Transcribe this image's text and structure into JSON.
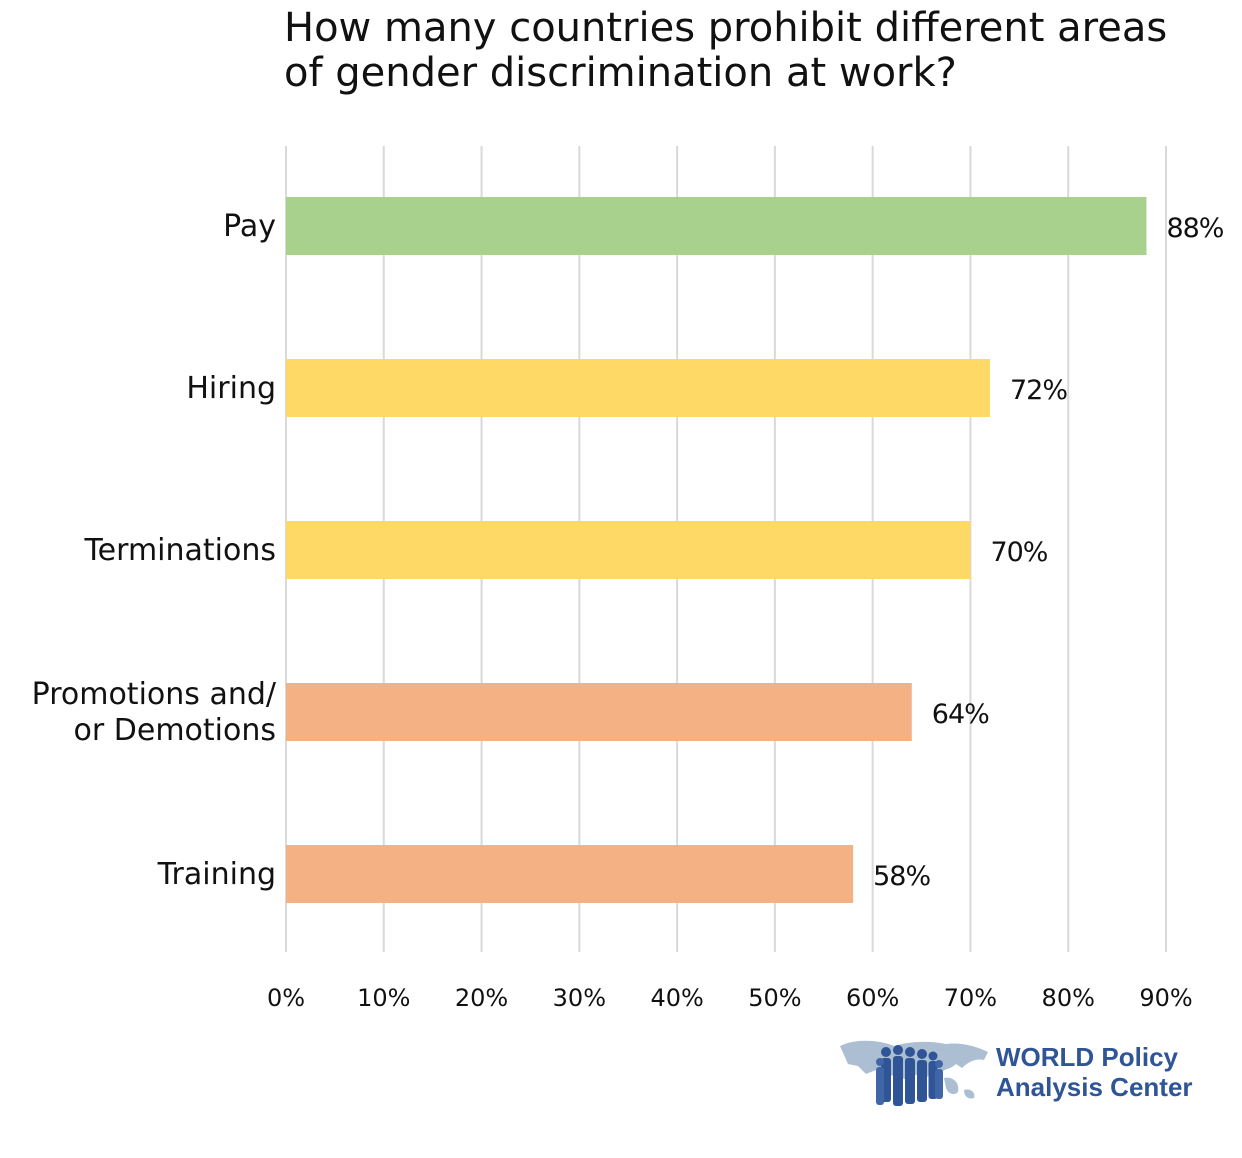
{
  "chart_data": {
    "type": "bar",
    "orientation": "horizontal",
    "title": "How many countries prohibit different areas of gender discrimination at work?",
    "title_lines": [
      "How many countries prohibit different areas",
      "of gender discrimination at work?"
    ],
    "categories": [
      {
        "label_lines": [
          "Pay"
        ],
        "value": 88,
        "value_label": "88%",
        "color": "#a9d18e"
      },
      {
        "label_lines": [
          "Hiring"
        ],
        "value": 72,
        "value_label": "72%",
        "color": "#ffd966"
      },
      {
        "label_lines": [
          "Terminations"
        ],
        "value": 70,
        "value_label": "70%",
        "color": "#ffd966"
      },
      {
        "label_lines": [
          "Promotions and/",
          "or Demotions"
        ],
        "value": 64,
        "value_label": "64%",
        "color": "#f4b183"
      },
      {
        "label_lines": [
          "Training"
        ],
        "value": 58,
        "value_label": "58%",
        "color": "#f4b183"
      }
    ],
    "xlim": [
      0,
      90
    ],
    "ticks": [
      0,
      10,
      20,
      30,
      40,
      50,
      60,
      70,
      80,
      90
    ],
    "tick_labels": [
      "0%",
      "10%",
      "20%",
      "30%",
      "40%",
      "50%",
      "60%",
      "70%",
      "80%",
      "90%"
    ],
    "grid": true,
    "gridline_color": "#d9d9d9",
    "xlabel": "",
    "ylabel": ""
  },
  "logo": {
    "line1": "WORLD Policy",
    "line2": "Analysis Center",
    "brand_color": "#2f5597",
    "map_color": "#9db3c9"
  }
}
